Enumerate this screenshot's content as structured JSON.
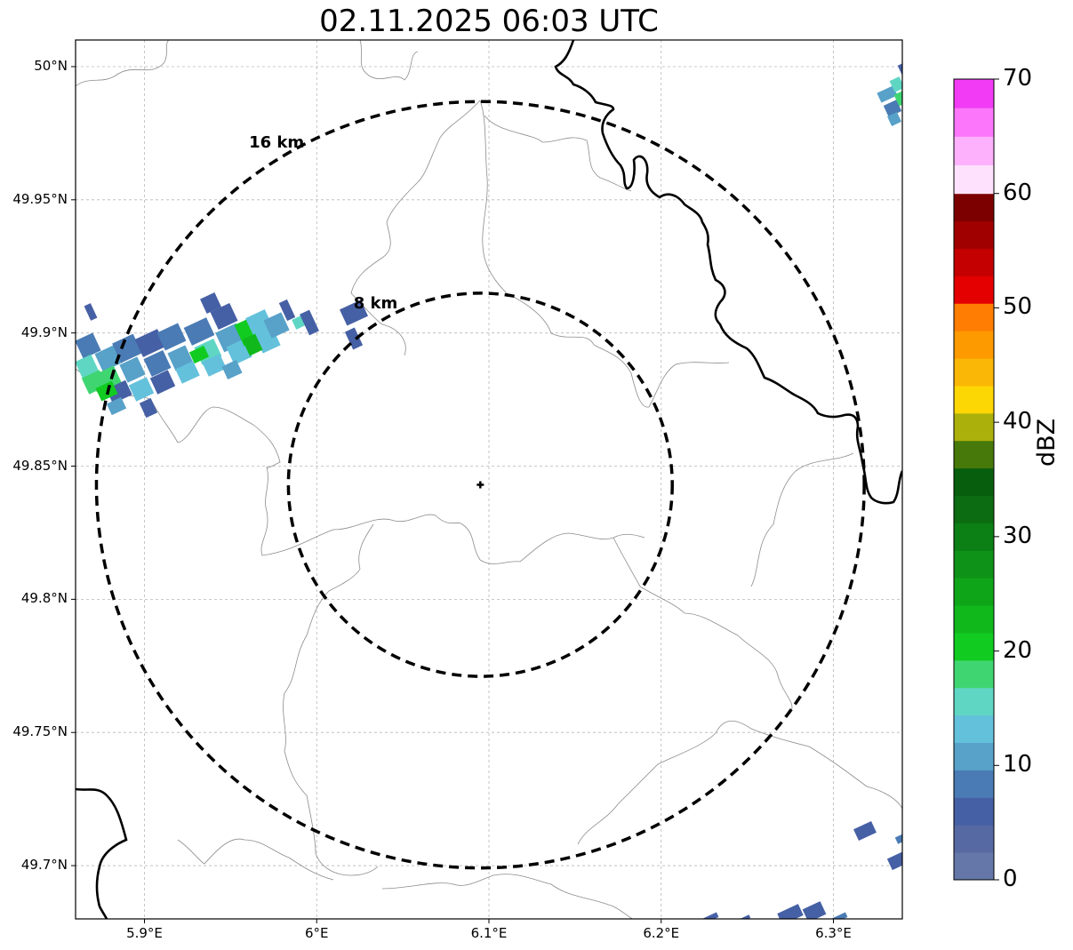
{
  "title": "02.11.2025 06:03 UTC",
  "map": {
    "lon_range": [
      5.86,
      6.34
    ],
    "lat_range": [
      49.68,
      50.01
    ],
    "radar_site": {
      "lon": 6.095,
      "lat": 49.843
    },
    "range_rings": [
      {
        "label": "8 km",
        "radius_km": 8
      },
      {
        "label": "16 km",
        "radius_km": 16
      }
    ],
    "x_ticks": [
      {
        "lon": 5.9,
        "label": "5.9°E"
      },
      {
        "lon": 6.0,
        "label": "6°E"
      },
      {
        "lon": 6.1,
        "label": "6.1°E"
      },
      {
        "lon": 6.2,
        "label": "6.2°E"
      },
      {
        "lon": 6.3,
        "label": "6.3°E"
      }
    ],
    "y_ticks": [
      {
        "lat": 50.0,
        "label": "50°N"
      },
      {
        "lat": 49.95,
        "label": "49.95°N"
      },
      {
        "lat": 49.9,
        "label": "49.9°N"
      },
      {
        "lat": 49.85,
        "label": "49.85°N"
      },
      {
        "lat": 49.8,
        "label": "49.8°N"
      },
      {
        "lat": 49.75,
        "label": "49.75°N"
      },
      {
        "lat": 49.7,
        "label": "49.7°N"
      }
    ],
    "grid": true
  },
  "colorbar": {
    "label": "dBZ",
    "min": 0,
    "max": 70,
    "ticks": [
      "0",
      "10",
      "20",
      "30",
      "40",
      "50",
      "60",
      "70"
    ],
    "colors": [
      "#6477a8",
      "#5769a2",
      "#4660a5",
      "#4a7bb4",
      "#58a1c9",
      "#64c1dc",
      "#5fd6c4",
      "#3fd672",
      "#11cb21",
      "#10b81c",
      "#0fa519",
      "#0f9218",
      "#0c7f15",
      "#0b6c12",
      "#075f0e",
      "#47790a",
      "#acb00b",
      "#fdd704",
      "#fbb706",
      "#fd9a00",
      "#fe7d02",
      "#e40000",
      "#c40000",
      "#a00000",
      "#7c0000",
      "#fde1fd",
      "#fdb1fd",
      "#fc76fb",
      "#f13bf4"
    ]
  }
}
